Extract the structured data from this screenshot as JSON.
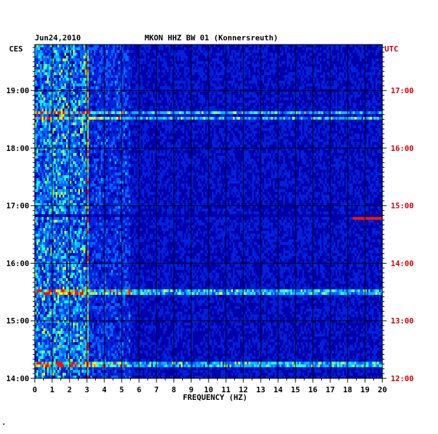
{
  "header": {
    "date": "Jun24,2010",
    "station": "MKON HHZ BW 01 (Konnersreuth)"
  },
  "axes": {
    "left_zone": "CES",
    "right_zone": "UTC",
    "xlabel": "FREQUENCY (HZ)"
  },
  "colors": {
    "background_blue": "#0000aa",
    "hour_line": "#000000",
    "utc_text": "#cc0000"
  },
  "chart_data": {
    "type": "heatmap",
    "title": "MKON HHZ BW 01 (Konnersreuth)",
    "xlabel": "FREQUENCY (HZ)",
    "ylabel_left": "CES",
    "ylabel_right": "UTC",
    "xlim": [
      0,
      20
    ],
    "x_ticks": [
      "0",
      "1",
      "2",
      "3",
      "4",
      "5",
      "6",
      "7",
      "8",
      "9",
      "10",
      "11",
      "12",
      "13",
      "14",
      "15",
      "16",
      "17",
      "18",
      "19",
      "20"
    ],
    "ylim_ces_hours": [
      14.0,
      19.8
    ],
    "y_ticks_ces": [
      "14:00",
      "15:00",
      "16:00",
      "17:00",
      "18:00",
      "19:00"
    ],
    "y_ticks_utc": [
      "12:00",
      "13:00",
      "14:00",
      "15:00",
      "16:00",
      "17:00"
    ],
    "features": {
      "low_freq_band_hz": [
        0,
        3
      ],
      "persistent_line_hz": 3.0,
      "broadband_bursts_ces_hour": [
        18.63,
        18.54,
        15.52,
        14.27
      ],
      "quiet_gap_ces_hour": 16.85,
      "spot_ces_hour": 16.82,
      "spot_hz": [
        18.3,
        20
      ]
    }
  }
}
